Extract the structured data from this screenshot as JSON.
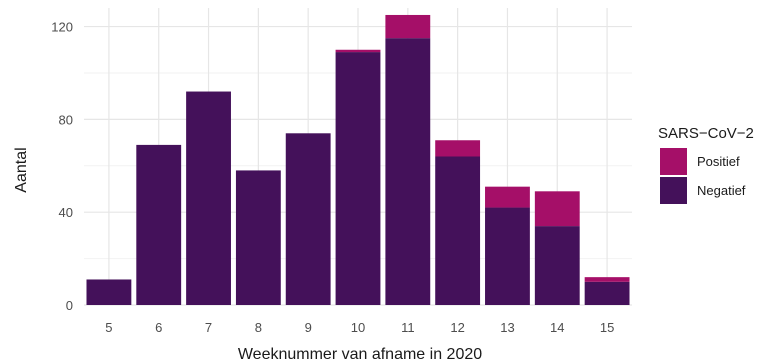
{
  "chart_data": {
    "type": "bar",
    "stacked": true,
    "categories": [
      "5",
      "6",
      "7",
      "8",
      "9",
      "10",
      "11",
      "12",
      "13",
      "14",
      "15"
    ],
    "series": [
      {
        "name": "Negatief",
        "color": "#44115a",
        "values": [
          11,
          69,
          92,
          58,
          74,
          109,
          115,
          64,
          42,
          34,
          10
        ]
      },
      {
        "name": "Positief",
        "color": "#a50f68",
        "values": [
          0,
          0,
          0,
          0,
          0,
          1,
          10,
          7,
          9,
          15,
          2
        ]
      }
    ],
    "xlabel": "Weeknummer van afname in 2020",
    "ylabel": "Aantal",
    "ylim": [
      0,
      128
    ],
    "yticks": [
      0,
      40,
      80,
      120
    ],
    "grid": true,
    "legend": {
      "title": "SARS−CoV−2",
      "placement": "right",
      "entries": [
        "Positief",
        "Negatief"
      ]
    }
  }
}
